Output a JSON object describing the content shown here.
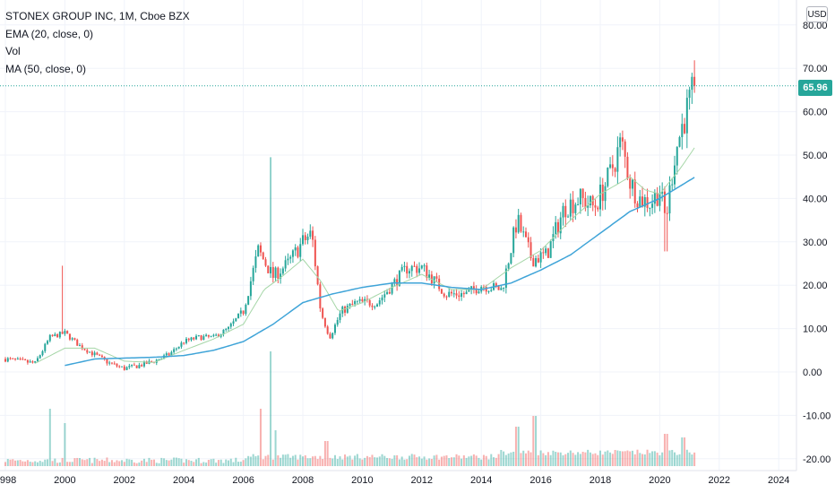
{
  "legend": {
    "symbol": "STONEX GROUP INC, 1M, Cboe BZX",
    "ema": "EMA (20, close, 0)",
    "vol": "Vol",
    "ma": "MA (50, close, 0)"
  },
  "currency_button": "USD",
  "last_price_label": "65.96",
  "colors": {
    "up": "#26a69a",
    "down": "#ef5350",
    "ema": "#a5d6a7",
    "ma": "#3fa4d8",
    "price_line": "#26a69a",
    "grid": "#f0f3fa"
  },
  "chart_data": {
    "type": "candlestick",
    "title": "STONEX GROUP INC, 1M, Cboe BZX",
    "interval": "1M",
    "last_price": 65.96,
    "y_ticks": [
      -20,
      -10,
      0,
      10,
      20,
      30,
      40,
      50,
      60,
      70,
      80
    ],
    "y_tick_labels": [
      "-20.00",
      "-10.00",
      "0.00",
      "10.00",
      "20.00",
      "30.00",
      "40.00",
      "50.00",
      "60.00",
      "70.00",
      "80.00"
    ],
    "x_tick_labels": [
      "1998",
      "2000",
      "2002",
      "2004",
      "2006",
      "2008",
      "2010",
      "2012",
      "2014",
      "2016",
      "2018",
      "2020",
      "2022",
      "2024"
    ],
    "x_ticks": [
      1998,
      2000,
      2002,
      2004,
      2006,
      2008,
      2010,
      2012,
      2014,
      2016,
      2018,
      2020,
      2022,
      2024
    ],
    "xlim": [
      1997.9,
      2024.7
    ],
    "ylim": [
      -22,
      86
    ],
    "grid": true,
    "price_anchors": [
      [
        1998.0,
        3.0
      ],
      [
        1999.0,
        2.0
      ],
      [
        1999.5,
        8.0
      ],
      [
        2000.0,
        9.0
      ],
      [
        2000.5,
        6.0
      ],
      [
        2001.0,
        4.0
      ],
      [
        2001.5,
        2.0
      ],
      [
        2002.0,
        0.8
      ],
      [
        2002.5,
        1.5
      ],
      [
        2003.0,
        2.5
      ],
      [
        2003.5,
        4.0
      ],
      [
        2004.0,
        7.0
      ],
      [
        2004.5,
        8.0
      ],
      [
        2005.0,
        8.0
      ],
      [
        2005.5,
        10.0
      ],
      [
        2006.0,
        14.0
      ],
      [
        2006.5,
        28.0
      ],
      [
        2007.0,
        22.0
      ],
      [
        2007.5,
        25.0
      ],
      [
        2008.0,
        30.0
      ],
      [
        2008.3,
        32.0
      ],
      [
        2008.6,
        14.0
      ],
      [
        2008.9,
        8.0
      ],
      [
        2009.3,
        14.0
      ],
      [
        2009.8,
        16.0
      ],
      [
        2010.5,
        16.0
      ],
      [
        2011.0,
        20.0
      ],
      [
        2011.5,
        24.0
      ],
      [
        2012.0,
        24.0
      ],
      [
        2012.3,
        22.0
      ],
      [
        2012.8,
        18.0
      ],
      [
        2013.5,
        18.0
      ],
      [
        2014.0,
        20.0
      ],
      [
        2014.7,
        19.0
      ],
      [
        2015.2,
        35.0
      ],
      [
        2015.7,
        26.0
      ],
      [
        2016.2,
        27.0
      ],
      [
        2016.8,
        38.0
      ],
      [
        2017.3,
        40.0
      ],
      [
        2017.8,
        38.0
      ],
      [
        2018.3,
        45.0
      ],
      [
        2018.7,
        53.0
      ],
      [
        2019.0,
        44.0
      ],
      [
        2019.3,
        40.0
      ],
      [
        2019.7,
        39.0
      ],
      [
        2020.0,
        42.0
      ],
      [
        2020.2,
        35.0
      ],
      [
        2020.5,
        50.0
      ],
      [
        2020.8,
        58.0
      ],
      [
        2021.0,
        62.0
      ],
      [
        2021.2,
        65.96
      ]
    ],
    "ema_anchors": [
      [
        1999.0,
        2.0
      ],
      [
        2000.0,
        5.5
      ],
      [
        2001.0,
        5.5
      ],
      [
        2002.0,
        2.5
      ],
      [
        2003.0,
        2.2
      ],
      [
        2004.0,
        5.0
      ],
      [
        2005.0,
        7.6
      ],
      [
        2006.0,
        11.0
      ],
      [
        2006.7,
        19.0
      ],
      [
        2007.3,
        22.0
      ],
      [
        2008.0,
        26.0
      ],
      [
        2008.6,
        21.0
      ],
      [
        2009.2,
        14.0
      ],
      [
        2010.0,
        16.0
      ],
      [
        2011.0,
        19.5
      ],
      [
        2012.0,
        22.5
      ],
      [
        2013.0,
        19.0
      ],
      [
        2014.0,
        19.0
      ],
      [
        2015.0,
        24.0
      ],
      [
        2016.0,
        28.0
      ],
      [
        2017.0,
        35.0
      ],
      [
        2018.0,
        41.0
      ],
      [
        2019.0,
        45.0
      ],
      [
        2019.5,
        42.0
      ],
      [
        2020.0,
        41.0
      ],
      [
        2020.7,
        47.0
      ],
      [
        2021.2,
        52.0
      ]
    ],
    "ma_anchors": [
      [
        2000.0,
        1.5
      ],
      [
        2001.0,
        3.0
      ],
      [
        2002.0,
        3.2
      ],
      [
        2003.0,
        3.4
      ],
      [
        2004.0,
        3.8
      ],
      [
        2005.0,
        5.0
      ],
      [
        2006.0,
        7.0
      ],
      [
        2007.0,
        11.0
      ],
      [
        2008.0,
        16.0
      ],
      [
        2009.0,
        18.0
      ],
      [
        2010.0,
        19.5
      ],
      [
        2011.0,
        20.5
      ],
      [
        2012.0,
        20.5
      ],
      [
        2013.0,
        19.5
      ],
      [
        2014.0,
        19.0
      ],
      [
        2015.0,
        20.5
      ],
      [
        2016.0,
        23.5
      ],
      [
        2017.0,
        27.0
      ],
      [
        2018.0,
        32.0
      ],
      [
        2019.0,
        37.0
      ],
      [
        2020.0,
        40.0
      ],
      [
        2021.2,
        45.0
      ]
    ],
    "volume_spikes": [
      [
        1999.5,
        0.8
      ],
      [
        2000.0,
        0.6
      ],
      [
        2006.6,
        0.8
      ],
      [
        2006.9,
        1.6
      ],
      [
        2007.1,
        0.5
      ],
      [
        2008.8,
        0.35
      ],
      [
        2015.2,
        0.55
      ],
      [
        2015.8,
        0.7
      ],
      [
        2020.2,
        0.45
      ],
      [
        2020.8,
        0.4
      ]
    ]
  }
}
